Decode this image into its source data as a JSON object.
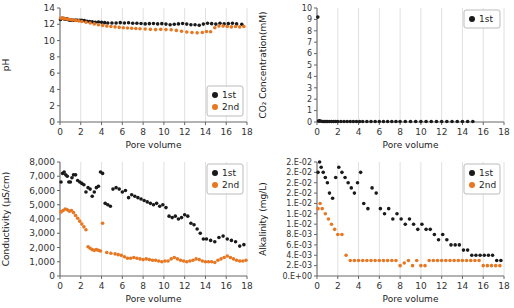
{
  "chart_data": [
    {
      "type": "scatter",
      "x_label": "Pore volume",
      "y_label": "pH",
      "grid": "x",
      "legend": "lower right",
      "xlim": [
        0,
        18
      ],
      "xticks": [
        0,
        2,
        4,
        6,
        8,
        10,
        12,
        14,
        16,
        18
      ],
      "ylim": [
        0,
        14
      ],
      "yticks": [
        0,
        2,
        4,
        6,
        8,
        10,
        12,
        14
      ],
      "series": [
        {
          "name": "1st",
          "color": "#1a1a1a",
          "x": [
            0.05,
            0.15,
            0.25,
            0.35,
            0.45,
            0.55,
            0.65,
            0.75,
            0.85,
            0.95,
            1.05,
            1.15,
            1.3,
            1.5,
            1.7,
            1.9,
            2.1,
            2.35,
            2.6,
            2.85,
            3.1,
            3.4,
            3.7,
            4.0,
            4.3,
            4.6,
            5.0,
            5.4,
            5.8,
            6.2,
            6.6,
            7.0,
            7.4,
            7.8,
            8.2,
            8.6,
            9.0,
            9.4,
            9.8,
            10.2,
            10.6,
            11.0,
            11.4,
            11.8,
            12.2,
            12.6,
            13.0,
            13.4,
            13.8,
            14.2,
            14.6,
            15.0,
            15.4,
            15.8,
            16.2,
            16.6,
            17.0,
            17.5
          ],
          "values": [
            12.6,
            12.7,
            12.75,
            12.7,
            12.65,
            12.65,
            12.65,
            12.6,
            12.55,
            12.5,
            12.55,
            12.5,
            12.5,
            12.52,
            12.5,
            12.48,
            12.5,
            12.45,
            12.38,
            12.35,
            12.3,
            12.25,
            12.28,
            12.25,
            12.2,
            12.15,
            12.15,
            12.15,
            12.2,
            12.15,
            12.18,
            12.12,
            12.12,
            12.1,
            12.05,
            12.08,
            12.1,
            12.05,
            12.08,
            12.02,
            11.95,
            12.0,
            12.05,
            12.1,
            12.02,
            11.95,
            11.95,
            11.88,
            12.02,
            12.12,
            12.08,
            12.02,
            12.12,
            12.05,
            12.08,
            12.12,
            12.05,
            12.0
          ]
        },
        {
          "name": "2nd",
          "color": "#e87722",
          "x": [
            0.08,
            0.2,
            0.4,
            0.6,
            0.8,
            1.0,
            1.2,
            1.5,
            1.8,
            2.1,
            2.5,
            2.9,
            3.3,
            3.7,
            4.1,
            4.5,
            4.9,
            5.3,
            5.7,
            6.1,
            6.5,
            6.9,
            7.3,
            7.7,
            8.2,
            8.7,
            9.2,
            9.7,
            10.2,
            10.7,
            11.2,
            11.7,
            12.2,
            12.7,
            13.2,
            13.7,
            14.1,
            14.5,
            14.9,
            15.3,
            15.7,
            16.1,
            16.5,
            16.9,
            17.3,
            17.7
          ],
          "values": [
            12.75,
            12.78,
            12.72,
            12.65,
            12.62,
            12.58,
            12.52,
            12.48,
            12.42,
            12.35,
            12.25,
            12.15,
            12.05,
            11.95,
            11.85,
            11.78,
            11.72,
            11.68,
            11.62,
            11.58,
            11.55,
            11.52,
            11.48,
            11.45,
            11.42,
            11.38,
            11.35,
            11.38,
            11.35,
            11.32,
            11.25,
            11.15,
            11.05,
            11.0,
            10.95,
            11.0,
            11.12,
            11.08,
            11.58,
            11.78,
            11.78,
            11.72,
            11.68,
            11.72,
            11.68,
            11.72
          ]
        }
      ]
    },
    {
      "type": "scatter",
      "x_label": "Pore volume",
      "y_label": "CO₂ Concentration(mM)",
      "grid": "x",
      "legend": "upper right",
      "xlim": [
        0,
        18
      ],
      "xticks": [
        0,
        2,
        4,
        6,
        8,
        10,
        12,
        14,
        16,
        18
      ],
      "ylim": [
        0,
        10
      ],
      "yticks": [
        0,
        1,
        2,
        3,
        4,
        5,
        6,
        7,
        8,
        9,
        10
      ],
      "series": [
        {
          "name": "1st",
          "color": "#1a1a1a",
          "x": [
            0.08,
            0.15,
            0.25,
            0.4,
            0.55,
            0.7,
            0.85,
            1.0,
            1.2,
            1.4,
            1.6,
            1.8,
            2.0,
            2.3,
            2.6,
            2.9,
            3.2,
            3.5,
            3.8,
            4.1,
            4.4,
            4.8,
            5.2,
            5.6,
            6.0,
            6.4,
            6.8,
            7.2,
            7.6,
            8.0,
            8.5,
            9.0,
            9.5,
            10.0,
            10.5,
            11.0,
            11.5,
            12.0,
            12.5,
            13.0,
            13.5,
            14.0,
            14.5,
            15.0
          ],
          "values": [
            9.2,
            0.08,
            0.1,
            0.06,
            0.05,
            0.05,
            0.05,
            0.05,
            0.05,
            0.04,
            0.04,
            0.04,
            0.04,
            0.04,
            0.04,
            0.04,
            0.04,
            0.04,
            0.04,
            0.05,
            0.04,
            0.04,
            0.04,
            0.04,
            0.04,
            0.04,
            0.04,
            0.04,
            0.04,
            0.04,
            0.04,
            0.04,
            0.04,
            0.04,
            0.04,
            0.04,
            0.04,
            0.04,
            0.04,
            0.04,
            0.04,
            0.04,
            0.04,
            0.04
          ]
        }
      ]
    },
    {
      "type": "scatter",
      "x_label": "Pore volume",
      "y_label": "Conductivity (μS/cm)",
      "grid": "x",
      "legend": "upper right",
      "xlim": [
        0,
        18
      ],
      "xticks": [
        0,
        2,
        4,
        6,
        8,
        10,
        12,
        14,
        16,
        18
      ],
      "ylim": [
        0,
        8000
      ],
      "yticks": [
        0,
        {
          "value": 1000,
          "label": "1,000"
        },
        {
          "value": 2000,
          "label": "2,000"
        },
        {
          "value": 3000,
          "label": "3,000"
        },
        {
          "value": 4000,
          "label": "4,000"
        },
        {
          "value": 5000,
          "label": "5,000"
        },
        {
          "value": 6000,
          "label": "6,000"
        },
        {
          "value": 7000,
          "label": "7,000"
        },
        {
          "value": 8000,
          "label": "8,000"
        }
      ],
      "series": [
        {
          "name": "1st",
          "color": "#1a1a1a",
          "x": [
            0.1,
            0.25,
            0.4,
            0.55,
            0.7,
            0.85,
            1.0,
            1.15,
            1.3,
            1.5,
            1.7,
            1.9,
            2.1,
            2.3,
            2.5,
            2.7,
            2.9,
            3.1,
            3.3,
            3.5,
            3.7,
            3.9,
            4.1,
            4.35,
            4.6,
            4.85,
            5.1,
            5.4,
            5.7,
            6.0,
            6.3,
            6.6,
            6.9,
            7.2,
            7.5,
            7.8,
            8.1,
            8.4,
            8.7,
            9.0,
            9.3,
            9.6,
            9.9,
            10.2,
            10.5,
            10.8,
            11.1,
            11.4,
            11.7,
            12.0,
            12.3,
            12.6,
            12.9,
            13.2,
            13.5,
            13.8,
            14.1,
            14.5,
            14.9,
            15.3,
            15.7,
            16.1,
            16.5,
            16.9,
            17.3,
            17.7
          ],
          "values": [
            6600,
            7200,
            7300,
            7100,
            7000,
            6600,
            6600,
            6900,
            7100,
            7100,
            6700,
            6600,
            6500,
            6400,
            5900,
            6200,
            6100,
            5600,
            5900,
            6200,
            6300,
            7300,
            7200,
            5100,
            5000,
            4900,
            6100,
            6200,
            6100,
            5900,
            6000,
            5500,
            5700,
            5600,
            5500,
            5400,
            5300,
            5200,
            5100,
            5000,
            5100,
            4900,
            5000,
            4800,
            4200,
            4100,
            4200,
            4000,
            4100,
            4300,
            4200,
            3700,
            3600,
            3300,
            3000,
            2600,
            2600,
            2500,
            2400,
            2700,
            2800,
            2600,
            2500,
            2400,
            2100,
            2200
          ]
        },
        {
          "name": "2nd",
          "color": "#e87722",
          "x": [
            0.1,
            0.3,
            0.5,
            0.7,
            0.9,
            1.1,
            1.3,
            1.5,
            1.7,
            1.9,
            2.1,
            2.3,
            2.5,
            2.7,
            2.9,
            3.1,
            3.3,
            3.5,
            3.7,
            3.9,
            4.1,
            4.5,
            4.9,
            5.3,
            5.6,
            5.9,
            6.2,
            6.5,
            6.8,
            7.1,
            7.4,
            7.7,
            8.0,
            8.3,
            8.6,
            8.9,
            9.2,
            9.5,
            9.8,
            10.1,
            10.4,
            10.7,
            11.0,
            11.3,
            11.6,
            11.9,
            12.2,
            12.5,
            12.8,
            13.1,
            13.4,
            13.7,
            14.0,
            14.3,
            14.6,
            14.9,
            15.2,
            15.5,
            15.8,
            16.1,
            16.4,
            16.7,
            17.0,
            17.3,
            17.6,
            17.9
          ],
          "values": [
            4500,
            4600,
            4700,
            4650,
            4550,
            4600,
            4450,
            4250,
            4050,
            3850,
            3650,
            3450,
            3250,
            2050,
            1950,
            1850,
            1800,
            1850,
            1800,
            1750,
            3700,
            1650,
            1600,
            1550,
            1500,
            1450,
            1350,
            1250,
            1250,
            1300,
            1250,
            1200,
            1150,
            1200,
            1150,
            1100,
            1100,
            1050,
            1000,
            1050,
            1050,
            1200,
            1300,
            1200,
            1100,
            1050,
            1000,
            1050,
            1100,
            1200,
            1150,
            1050,
            1000,
            1000,
            1000,
            950,
            1100,
            1200,
            1300,
            1400,
            1300,
            1200,
            1100,
            1050,
            1050,
            1100
          ]
        }
      ]
    },
    {
      "type": "scatter",
      "x_label": "Pore volume",
      "y_label": "Alkalinity (mg/L)",
      "grid": "x",
      "legend": "upper right",
      "xlim": [
        0,
        18
      ],
      "xticks": [
        0,
        2,
        4,
        6,
        8,
        10,
        12,
        14,
        16,
        18
      ],
      "ylim": [
        0,
        0.022
      ],
      "yticks": [
        {
          "value": 0.0,
          "label": "0.E+00"
        },
        {
          "value": 0.002,
          "label": "2.E-03"
        },
        {
          "value": 0.004,
          "label": "4.E-03"
        },
        {
          "value": 0.006,
          "label": "6.E-03"
        },
        {
          "value": 0.008,
          "label": "8.E-03"
        },
        {
          "value": 0.01,
          "label": "1.E-02"
        },
        {
          "value": 0.012,
          "label": "1.E-02"
        },
        {
          "value": 0.014,
          "label": "1.E-02"
        },
        {
          "value": 0.016,
          "label": "2.E-02"
        },
        {
          "value": 0.018,
          "label": "2.E-02"
        },
        {
          "value": 0.02,
          "label": "2.E-02"
        },
        {
          "value": 0.022,
          "label": "2.E-02"
        }
      ],
      "series": [
        {
          "name": "1st",
          "color": "#1a1a1a",
          "x": [
            0.1,
            0.25,
            0.4,
            0.6,
            0.8,
            1.0,
            1.2,
            1.5,
            1.8,
            2.1,
            2.4,
            2.7,
            3.0,
            3.3,
            3.6,
            3.9,
            4.2,
            4.5,
            4.9,
            5.3,
            5.7,
            6.1,
            6.5,
            6.9,
            7.3,
            7.7,
            8.1,
            8.5,
            8.9,
            9.3,
            9.7,
            10.1,
            10.5,
            10.9,
            11.3,
            11.7,
            12.1,
            12.5,
            12.9,
            13.3,
            13.7,
            14.1,
            14.5,
            14.9,
            15.3,
            15.7,
            16.1,
            16.5,
            16.9,
            17.3,
            17.7
          ],
          "values": [
            0.02,
            0.022,
            0.021,
            0.02,
            0.019,
            0.018,
            0.016,
            0.015,
            0.019,
            0.021,
            0.02,
            0.019,
            0.018,
            0.017,
            0.016,
            0.018,
            0.02,
            0.014,
            0.013,
            0.017,
            0.016,
            0.013,
            0.012,
            0.013,
            0.011,
            0.012,
            0.011,
            0.01,
            0.011,
            0.01,
            0.009,
            0.01,
            0.009,
            0.009,
            0.008,
            0.007,
            0.008,
            0.007,
            0.006,
            0.006,
            0.006,
            0.005,
            0.005,
            0.004,
            0.004,
            0.004,
            0.004,
            0.004,
            0.004,
            0.003,
            0.003
          ]
        },
        {
          "name": "2nd",
          "color": "#e87722",
          "x": [
            0.1,
            0.3,
            0.5,
            0.8,
            1.1,
            1.4,
            1.7,
            2.0,
            2.4,
            2.8,
            3.2,
            3.6,
            4.0,
            4.4,
            4.8,
            5.2,
            5.6,
            6.0,
            6.4,
            6.8,
            7.2,
            7.6,
            8.0,
            8.4,
            8.8,
            9.2,
            9.6,
            10.0,
            10.4,
            10.8,
            11.2,
            11.6,
            12.0,
            12.4,
            12.8,
            13.2,
            13.6,
            14.0,
            14.4,
            14.8,
            15.2,
            15.6,
            16.0,
            16.4,
            16.8,
            17.2,
            17.6
          ],
          "values": [
            0.013,
            0.014,
            0.013,
            0.012,
            0.011,
            0.01,
            0.009,
            0.008,
            0.008,
            0.004,
            0.003,
            0.003,
            0.003,
            0.003,
            0.003,
            0.003,
            0.003,
            0.003,
            0.003,
            0.003,
            0.003,
            0.003,
            0.002,
            0.0025,
            0.003,
            0.002,
            0.003,
            0.002,
            0.002,
            0.003,
            0.003,
            0.003,
            0.003,
            0.003,
            0.003,
            0.003,
            0.003,
            0.003,
            0.003,
            0.003,
            0.003,
            0.003,
            0.002,
            0.002,
            0.002,
            0.002,
            0.002
          ]
        }
      ]
    }
  ]
}
